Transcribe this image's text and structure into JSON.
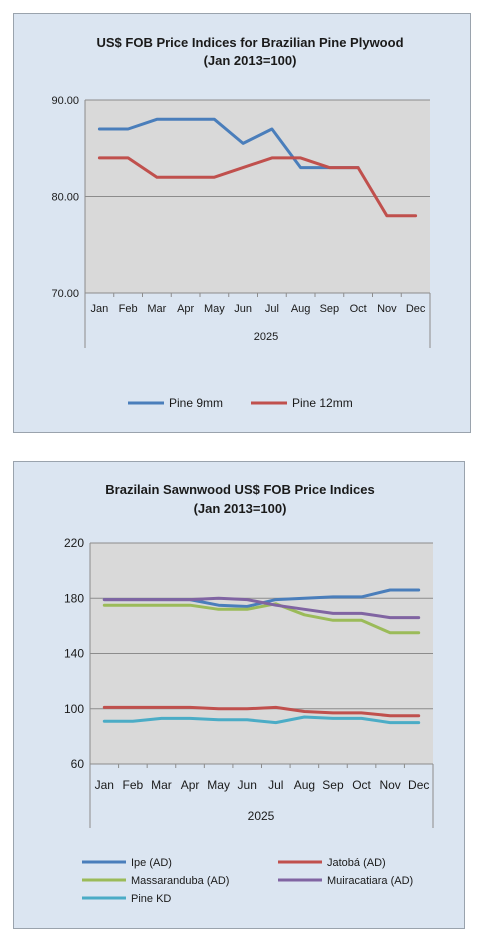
{
  "chart_data": [
    {
      "type": "line",
      "title": "US$ FOB Price Indices for Brazilian  Pine Plywood",
      "subtitle": "(Jan 2013=100)",
      "xlabel": "2025",
      "ylabel": "",
      "categories": [
        "Jan",
        "Feb",
        "Mar",
        "Apr",
        "May",
        "Jun",
        "Jul",
        "Aug",
        "Sep",
        "Oct",
        "Nov",
        "Dec"
      ],
      "ylim": [
        70,
        90
      ],
      "yticks": [
        "70.00",
        "80.00",
        "90.00"
      ],
      "grid": true,
      "legend": "bottom",
      "colors": {
        "background": "#dbe5f1",
        "plot": "#d9d9d9"
      },
      "series": [
        {
          "name": "Pine 9mm",
          "color": "#4a7ebb",
          "values": [
            87,
            87,
            88,
            88,
            88,
            85.5,
            87,
            83,
            83,
            83,
            null,
            null
          ]
        },
        {
          "name": "Pine 12mm",
          "color": "#c0504d",
          "values": [
            84,
            84,
            82,
            82,
            82,
            83,
            84,
            84,
            83,
            83,
            78,
            78
          ]
        }
      ]
    },
    {
      "type": "line",
      "title": "Brazilain Sawnwood US$ FOB Price Indices",
      "subtitle": "(Jan 2013=100)",
      "xlabel": "2025",
      "ylabel": "",
      "categories": [
        "Jan",
        "Feb",
        "Mar",
        "Apr",
        "May",
        "Jun",
        "Jul",
        "Aug",
        "Sep",
        "Oct",
        "Nov",
        "Dec"
      ],
      "ylim": [
        60,
        220
      ],
      "yticks": [
        "60",
        "100",
        "140",
        "180",
        "220"
      ],
      "grid": true,
      "legend": "bottom",
      "colors": {
        "background": "#dbe5f1",
        "plot": "#d9d9d9"
      },
      "series": [
        {
          "name": "Ipe (AD)",
          "color": "#4a7ebb",
          "values": [
            179,
            179,
            179,
            179,
            175,
            174,
            179,
            180,
            181,
            181,
            186,
            186
          ]
        },
        {
          "name": "Jatobá (AD)",
          "color": "#c0504d",
          "values": [
            101,
            101,
            101,
            101,
            100,
            100,
            101,
            98,
            97,
            97,
            95,
            95
          ]
        },
        {
          "name": "Massaranduba (AD)",
          "color": "#9bbb59",
          "values": [
            175,
            175,
            175,
            175,
            172,
            172,
            176,
            168,
            164,
            164,
            155,
            155
          ]
        },
        {
          "name": "Muiracatiara (AD)",
          "color": "#8064a2",
          "values": [
            179,
            179,
            179,
            179,
            180,
            179,
            175,
            172,
            169,
            169,
            166,
            166
          ]
        },
        {
          "name": "Pine KD",
          "color": "#4bacc6",
          "values": [
            91,
            91,
            93,
            93,
            92,
            92,
            90,
            94,
            93,
            93,
            90,
            90
          ]
        }
      ]
    }
  ]
}
